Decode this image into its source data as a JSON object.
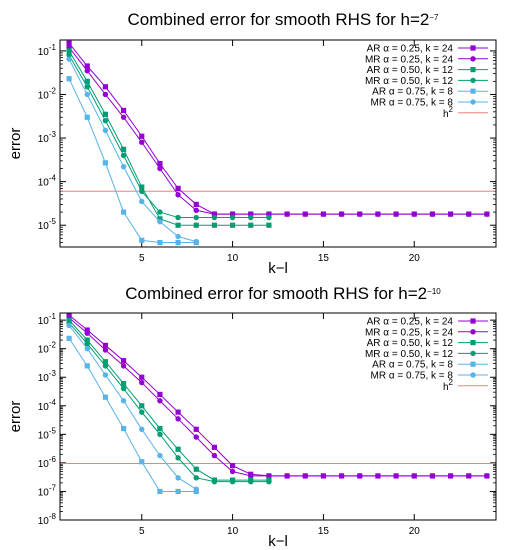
{
  "chart_data": [
    {
      "type": "line",
      "title_main": "Combined error for smooth RHS for h=2",
      "title_exp": "−7",
      "xlabel": "k−l",
      "ylabel": "error",
      "xlim": [
        0.5,
        24.5
      ],
      "ylim_log10": [
        -5.5,
        -0.75
      ],
      "xticks": [
        5,
        10,
        15,
        20
      ],
      "yticks": [
        {
          "base": "10",
          "exp": "-1",
          "v": -1
        },
        {
          "base": "10",
          "exp": "-2",
          "v": -2
        },
        {
          "base": "10",
          "exp": "-3",
          "v": -3
        },
        {
          "base": "10",
          "exp": "-4",
          "v": -4
        },
        {
          "base": "10",
          "exp": "-5",
          "v": -5
        }
      ],
      "reference": {
        "name_base": "h",
        "name_exp": "2",
        "value": 6e-05,
        "color": "#f08080"
      },
      "series": [
        {
          "name": "AR α = 0.25, k = 24",
          "marker": "square",
          "color": "#9400d3",
          "x": [
            1,
            2,
            3,
            4,
            5,
            6,
            7,
            8,
            9,
            10,
            11,
            12,
            13,
            14,
            15,
            16,
            17,
            18,
            19,
            20,
            21,
            22,
            23,
            24
          ],
          "y": [
            0.15,
            0.045,
            0.015,
            0.0043,
            0.0011,
            0.00026,
            7e-05,
            3e-05,
            1.8e-05,
            1.8e-05,
            1.8e-05,
            1.8e-05,
            1.8e-05,
            1.8e-05,
            1.8e-05,
            1.8e-05,
            1.8e-05,
            1.8e-05,
            1.8e-05,
            1.8e-05,
            1.8e-05,
            1.8e-05,
            1.8e-05,
            1.8e-05
          ]
        },
        {
          "name": "MR α = 0.25, k = 24",
          "marker": "circle",
          "color": "#9400d3",
          "x": [
            1,
            2,
            3,
            4,
            5,
            6,
            7,
            8,
            9,
            10,
            11,
            12,
            13,
            14,
            15,
            16,
            17,
            18,
            19,
            20,
            21,
            22,
            23,
            24
          ],
          "y": [
            0.12,
            0.035,
            0.01,
            0.003,
            0.0008,
            0.0002,
            5e-05,
            2.2e-05,
            1.8e-05,
            1.8e-05,
            1.8e-05,
            1.8e-05,
            1.8e-05,
            1.8e-05,
            1.8e-05,
            1.8e-05,
            1.8e-05,
            1.8e-05,
            1.8e-05,
            1.8e-05,
            1.8e-05,
            1.8e-05,
            1.8e-05,
            1.8e-05
          ]
        },
        {
          "name": "AR α = 0.50, k = 12",
          "marker": "square",
          "color": "#009e73",
          "x": [
            1,
            2,
            3,
            4,
            5,
            6,
            7,
            8,
            9,
            10,
            11,
            12
          ],
          "y": [
            0.1,
            0.02,
            0.0035,
            0.00055,
            7.5e-05,
            1.4e-05,
            1e-05,
            1e-05,
            1e-05,
            1e-05,
            1e-05,
            1e-05
          ]
        },
        {
          "name": "MR α = 0.50, k = 12",
          "marker": "circle",
          "color": "#009e73",
          "x": [
            1,
            2,
            3,
            4,
            5,
            6,
            7,
            8,
            9,
            10,
            11,
            12
          ],
          "y": [
            0.08,
            0.015,
            0.0025,
            0.0004,
            6e-05,
            2e-05,
            1.5e-05,
            1.5e-05,
            1.5e-05,
            1.5e-05,
            1.5e-05,
            1.5e-05
          ]
        },
        {
          "name": "AR α = 0.75, k = 8",
          "marker": "square",
          "color": "#56b4e9",
          "x": [
            1,
            2,
            3,
            4,
            5,
            6,
            7,
            8
          ],
          "y": [
            0.023,
            0.003,
            0.00027,
            2e-05,
            4.5e-06,
            4e-06,
            4e-06,
            4e-06
          ]
        },
        {
          "name": "MR α = 0.75, k = 8",
          "marker": "circle",
          "color": "#56b4e9",
          "x": [
            1,
            2,
            3,
            4,
            5,
            6,
            7,
            8
          ],
          "y": [
            0.065,
            0.01,
            0.0015,
            0.00022,
            3.5e-05,
            1.2e-05,
            5.5e-06,
            4.2e-06
          ]
        }
      ]
    },
    {
      "type": "line",
      "title_main": "Combined error for smooth RHS for h=2",
      "title_exp": "−10",
      "xlabel": "k−l",
      "ylabel": "error",
      "xlim": [
        0.5,
        24.5
      ],
      "ylim_log10": [
        -8,
        -0.75
      ],
      "xticks": [
        5,
        10,
        15,
        20
      ],
      "yticks": [
        {
          "base": "10",
          "exp": "-1",
          "v": -1
        },
        {
          "base": "10",
          "exp": "-2",
          "v": -2
        },
        {
          "base": "10",
          "exp": "-3",
          "v": -3
        },
        {
          "base": "10",
          "exp": "-4",
          "v": -4
        },
        {
          "base": "10",
          "exp": "-5",
          "v": -5
        },
        {
          "base": "10",
          "exp": "-6",
          "v": -6
        },
        {
          "base": "10",
          "exp": "-7",
          "v": -7
        },
        {
          "base": "10",
          "exp": "-8",
          "v": -8
        }
      ],
      "reference": {
        "name_base": "h",
        "name_exp": "2",
        "value": 9.5e-07,
        "color": "#f08080"
      },
      "series": [
        {
          "name": "AR α = 0.25, k = 24",
          "marker": "square",
          "color": "#9400d3",
          "x": [
            1,
            2,
            3,
            4,
            5,
            6,
            7,
            8,
            9,
            10,
            11,
            12,
            13,
            14,
            15,
            16,
            17,
            18,
            19,
            20,
            21,
            22,
            23,
            24
          ],
          "y": [
            0.15,
            0.045,
            0.013,
            0.0038,
            0.001,
            0.00025,
            6e-05,
            1.5e-05,
            3.5e-06,
            8e-07,
            4e-07,
            3.5e-07,
            3.5e-07,
            3.5e-07,
            3.5e-07,
            3.5e-07,
            3.5e-07,
            3.5e-07,
            3.5e-07,
            3.5e-07,
            3.5e-07,
            3.5e-07,
            3.5e-07,
            3.5e-07
          ]
        },
        {
          "name": "MR α = 0.25, k = 24",
          "marker": "circle",
          "color": "#9400d3",
          "x": [
            1,
            2,
            3,
            4,
            5,
            6,
            7,
            8,
            9,
            10,
            11,
            12,
            13,
            14,
            15,
            16,
            17,
            18,
            19,
            20,
            21,
            22,
            23,
            24
          ],
          "y": [
            0.12,
            0.035,
            0.009,
            0.0025,
            0.00065,
            0.00015,
            3.5e-05,
            8e-06,
            1.8e-06,
            5e-07,
            3.5e-07,
            3.5e-07,
            3.5e-07,
            3.5e-07,
            3.5e-07,
            3.5e-07,
            3.5e-07,
            3.5e-07,
            3.5e-07,
            3.5e-07,
            3.5e-07,
            3.5e-07,
            3.5e-07,
            3.5e-07
          ]
        },
        {
          "name": "AR α = 0.50, k = 12",
          "marker": "square",
          "color": "#009e73",
          "x": [
            1,
            2,
            3,
            4,
            5,
            6,
            7,
            8,
            9,
            10,
            11,
            12
          ],
          "y": [
            0.1,
            0.02,
            0.0035,
            0.0006,
            0.0001,
            1.6e-05,
            3e-06,
            6e-07,
            2.5e-07,
            2.5e-07,
            2.5e-07,
            2.5e-07
          ]
        },
        {
          "name": "MR α = 0.50, k = 12",
          "marker": "circle",
          "color": "#009e73",
          "x": [
            1,
            2,
            3,
            4,
            5,
            6,
            7,
            8,
            9,
            10,
            11,
            12
          ],
          "y": [
            0.08,
            0.015,
            0.0025,
            0.0004,
            6e-05,
            1e-05,
            1.5e-06,
            3e-07,
            2.2e-07,
            2.2e-07,
            2.2e-07,
            2.2e-07
          ]
        },
        {
          "name": "AR α = 0.75, k = 8",
          "marker": "square",
          "color": "#56b4e9",
          "x": [
            1,
            2,
            3,
            4,
            5,
            6,
            7,
            8
          ],
          "y": [
            0.023,
            0.0025,
            0.0002,
            1.6e-05,
            1.1e-06,
            1e-07,
            1e-07,
            1e-07
          ]
        },
        {
          "name": "MR α = 0.75, k = 8",
          "marker": "circle",
          "color": "#56b4e9",
          "x": [
            1,
            2,
            3,
            4,
            5,
            6,
            7,
            8
          ],
          "y": [
            0.065,
            0.01,
            0.0012,
            0.00015,
            1.5e-05,
            1.8e-06,
            3e-07,
            1.2e-07
          ]
        }
      ]
    }
  ]
}
